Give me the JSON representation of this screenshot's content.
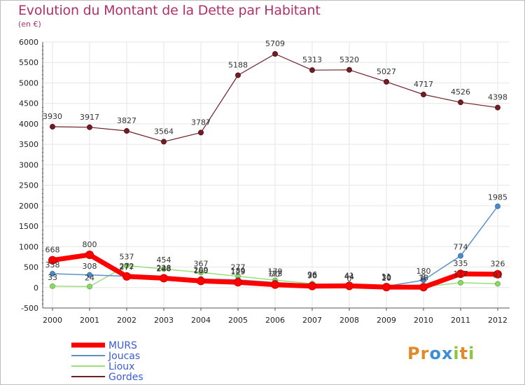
{
  "title": "Evolution du Montant de la Dette par Habitant",
  "unit": "(en €)",
  "brand": {
    "text": "Proxiti",
    "letters": [
      "P",
      "r",
      "o",
      "x",
      "i",
      "t",
      "i"
    ],
    "colors": [
      "#e2892a",
      "#e2892a",
      "#3f8fd6",
      "#3f8fd6",
      "#8cc63e",
      "#e2892a",
      "#8cc63e"
    ]
  },
  "chart_data": {
    "type": "line",
    "title": "Evolution du Montant de la Dette par Habitant",
    "ylabel": "(en €)",
    "xlabel": "",
    "x": [
      "2000",
      "2001",
      "2002",
      "2003",
      "2004",
      "2005",
      "2006",
      "2007",
      "2008",
      "2009",
      "2010",
      "2011",
      "2012"
    ],
    "ylim": [
      -500,
      6000
    ],
    "yticks": [
      -500,
      0,
      500,
      1000,
      1500,
      2000,
      2500,
      3000,
      3500,
      4000,
      4500,
      5000,
      5500,
      6000
    ],
    "grid": true,
    "legend_position": "bottom-left",
    "series": [
      {
        "name": "Gordes",
        "color": "#6e1e24",
        "values": [
          3930,
          3917,
          3827,
          3564,
          3787,
          5188,
          5709,
          5313,
          5320,
          5027,
          4717,
          4526,
          4398
        ]
      },
      {
        "name": "Lioux",
        "color": "#99e07a",
        "values": [
          33,
          24,
          537,
          454,
          367,
          277,
          179,
          96,
          0,
          10,
          18,
          117,
          91
        ]
      },
      {
        "name": "Joucas",
        "color": "#5b93c9",
        "values": [
          338,
          308,
          277,
          248,
          209,
          189,
          123,
          70,
          44,
          30,
          180,
          774,
          1985
        ]
      },
      {
        "name": "MURS",
        "color": "#ff0000",
        "values": [
          668,
          800,
          272,
          228,
          160,
          129,
          70,
          36,
          41,
          11,
          8,
          335,
          326
        ]
      }
    ]
  }
}
